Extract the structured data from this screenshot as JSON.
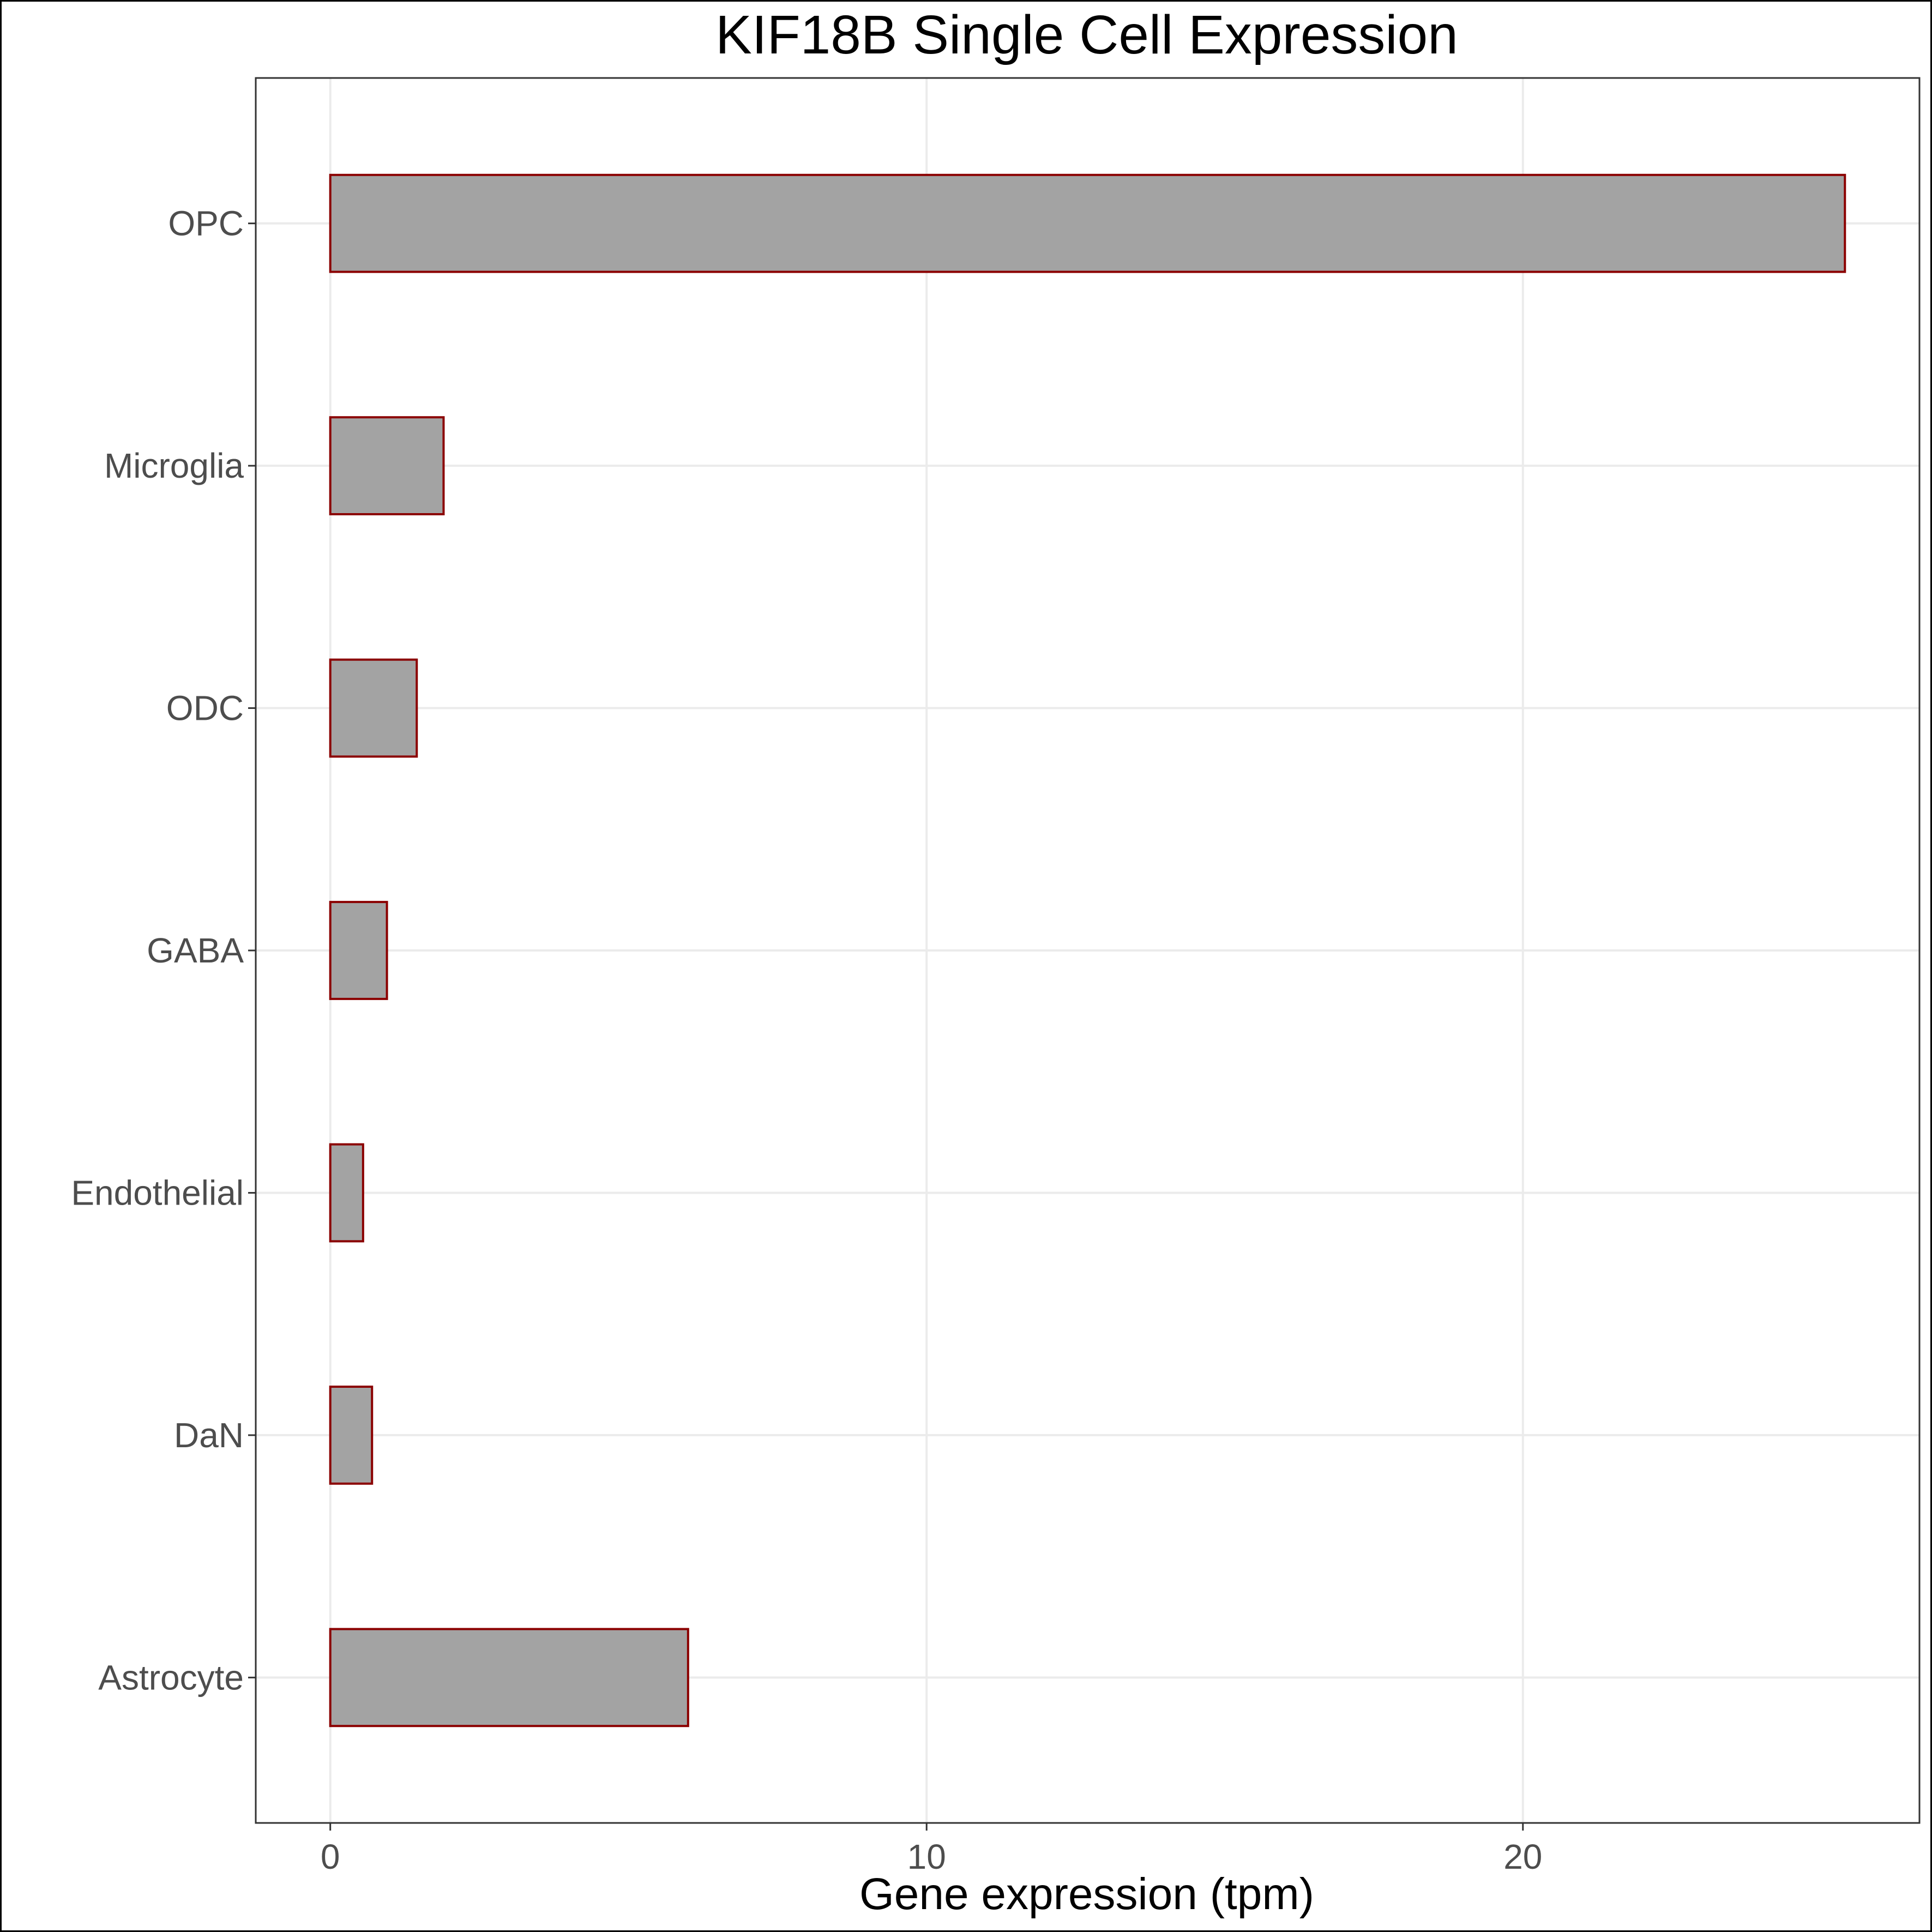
{
  "chart_data": {
    "type": "bar",
    "orientation": "horizontal",
    "title": "KIF18B Single Cell Expression",
    "xlabel": "Gene expression (tpm)",
    "ylabel": "",
    "categories": [
      "Astrocyte",
      "DaN",
      "Endothelial",
      "GABA",
      "ODC",
      "Microglia",
      "OPC"
    ],
    "values": [
      6.0,
      0.7,
      0.55,
      0.95,
      1.45,
      1.9,
      25.4
    ],
    "xlim": [
      -1.25,
      26.65
    ],
    "xticks": [
      0,
      10,
      20
    ],
    "xtick_labels": [
      "0",
      "10",
      "20"
    ],
    "category_order_top_to_bottom": [
      "OPC",
      "ODC",
      "Microglia",
      "GABA",
      "Endothelial",
      "DaN",
      "Astrocyte"
    ],
    "grid": true,
    "legend": "none",
    "colors": {
      "bar_fill": "#a3a3a3",
      "bar_outline": "#8b0000",
      "grid": "#ebebeb",
      "panel_border": "#333333",
      "tick_text": "#4d4d4d"
    }
  }
}
